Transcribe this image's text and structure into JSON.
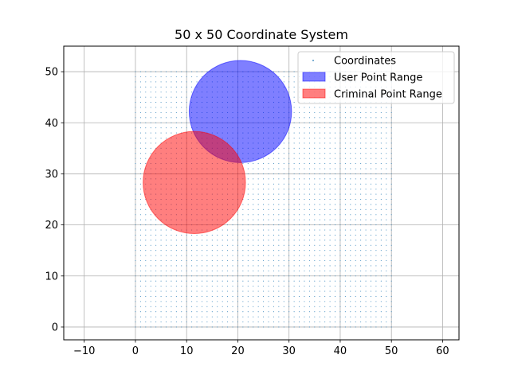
{
  "chart_data": {
    "type": "scatter",
    "title": "50 x 50 Coordinate System",
    "xlabel": "",
    "ylabel": "",
    "xlim": [
      -14,
      63.2
    ],
    "ylim": [
      -2.5,
      55
    ],
    "xticks": [
      -10,
      0,
      10,
      20,
      30,
      40,
      50,
      60
    ],
    "yticks": [
      0,
      10,
      20,
      30,
      40,
      50
    ],
    "grid": true,
    "legend_position": "top-right",
    "series": [
      {
        "name": "Coordinates",
        "kind": "point-grid",
        "x_range": [
          0,
          50
        ],
        "y_range": [
          0,
          50
        ],
        "step": 1,
        "color": "#1f77b4"
      },
      {
        "name": "User Point Range",
        "kind": "circle",
        "center": [
          20.5,
          42.2
        ],
        "radius": 10,
        "color": "#0000ff",
        "alpha": 0.5
      },
      {
        "name": "Criminal Point Range",
        "kind": "circle",
        "center": [
          11.5,
          28.3
        ],
        "radius": 10,
        "color": "#ff0000",
        "alpha": 0.5
      }
    ]
  }
}
